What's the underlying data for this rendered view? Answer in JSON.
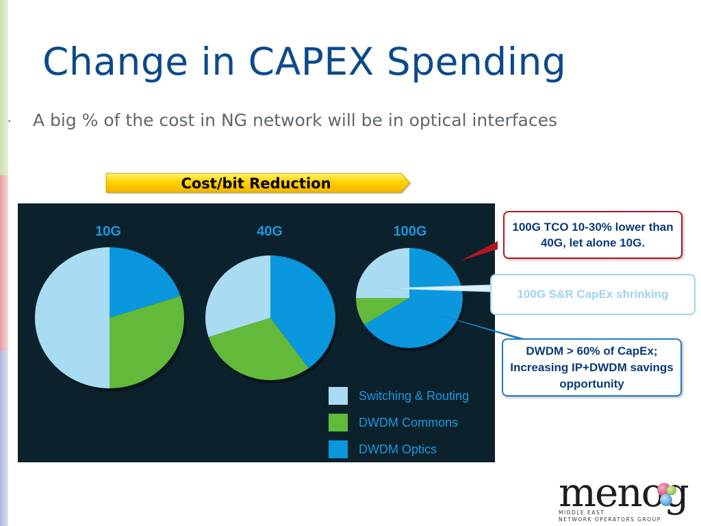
{
  "slide": {
    "title": "Change in CAPEX Spending",
    "bullet": "A big % of the cost in NG network will be in optical interfaces",
    "banner": "Cost/bit Reduction"
  },
  "chart_data": {
    "type": "pie",
    "charts": [
      {
        "label": "10G",
        "slices": [
          {
            "name": "DWDM Optics",
            "value": 20
          },
          {
            "name": "DWDM Commons",
            "value": 30
          },
          {
            "name": "Switching & Routing",
            "value": 50
          }
        ]
      },
      {
        "label": "40G",
        "slices": [
          {
            "name": "DWDM Optics",
            "value": 40
          },
          {
            "name": "DWDM Commons",
            "value": 30
          },
          {
            "name": "Switching & Routing",
            "value": 30
          }
        ]
      },
      {
        "label": "100G",
        "slices": [
          {
            "name": "DWDM Optics",
            "value": 66
          },
          {
            "name": "DWDM Commons",
            "value": 9
          },
          {
            "name": "Switching & Routing",
            "value": 25
          }
        ]
      }
    ],
    "legend": [
      {
        "name": "Switching & Routing",
        "color": "#a9dcf2"
      },
      {
        "name": "DWDM Commons",
        "color": "#62b93a"
      },
      {
        "name": "DWDM Optics",
        "color": "#0a97dd"
      }
    ],
    "legend_position": "bottom-right"
  },
  "callouts": {
    "tco": "100G TCO 10-30% lower than 40G, let alone 10G.",
    "sr_capex": "100G S&R CapEx shrinking",
    "dwdm": "DWDM > 60% of CapEx; Increasing IP+DWDM savings opportunity"
  },
  "colors": {
    "title": "#0b4a8b",
    "panel_background": "#0b222d",
    "banner": "#ffd200",
    "callout_red": "#b11722",
    "callout_blue": "#1d7cc4"
  },
  "logo": {
    "text": "menog",
    "sub_line1": "MIDDLE EAST",
    "sub_line2": "NETWORK OPERATORS GROUP"
  }
}
